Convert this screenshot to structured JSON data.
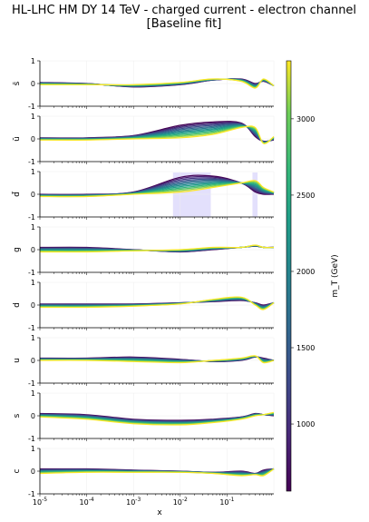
{
  "chart_data": {
    "type": "line",
    "title": "HL-LHC HM DY 14 TeV - charged current - electron channel",
    "subtitle": "[Baseline fit]",
    "xlabel": "x",
    "x_scale": "log",
    "xlim": [
      1e-05,
      1
    ],
    "x_ticks": [
      "10^-5",
      "10^-4",
      "10^-3",
      "10^-2",
      "10^-1"
    ],
    "colorbar": {
      "label": "m_T (GeV)",
      "colormap": "viridis",
      "range": [
        560,
        3380
      ],
      "ticks": [
        1000,
        1500,
        2000,
        2500,
        3000
      ]
    },
    "series_count_per_panel": 12,
    "panels": [
      {
        "name": "s̄",
        "ylim": [
          -1,
          1
        ],
        "yticks": [
          -1,
          0,
          1
        ],
        "low_mT_curve": {
          "x": [
            1e-05,
            0.0001,
            0.001,
            0.01,
            0.05,
            0.2,
            0.4,
            0.6,
            1.0
          ],
          "y": [
            0.05,
            0.0,
            -0.15,
            -0.05,
            0.15,
            0.2,
            0.0,
            0.1,
            -0.1
          ]
        },
        "high_mT_curve": {
          "x": [
            1e-05,
            0.0001,
            0.001,
            0.01,
            0.05,
            0.2,
            0.4,
            0.6,
            1.0
          ],
          "y": [
            -0.05,
            -0.05,
            -0.05,
            0.05,
            0.2,
            0.1,
            -0.2,
            0.2,
            -0.1
          ]
        }
      },
      {
        "name": "ū",
        "ylim": [
          -1,
          1
        ],
        "yticks": [
          -1,
          0,
          1
        ],
        "low_mT_curve": {
          "x": [
            1e-05,
            0.0001,
            0.001,
            0.01,
            0.05,
            0.2,
            0.4,
            0.6,
            1.0
          ],
          "y": [
            0.05,
            0.05,
            0.15,
            0.6,
            0.75,
            0.7,
            0.1,
            -0.1,
            -0.05
          ]
        },
        "high_mT_curve": {
          "x": [
            1e-05,
            0.0001,
            0.001,
            0.01,
            0.05,
            0.2,
            0.4,
            0.6,
            1.0
          ],
          "y": [
            -0.05,
            -0.05,
            0.0,
            0.05,
            0.2,
            0.5,
            0.5,
            -0.2,
            0.1
          ]
        }
      },
      {
        "name": "d̄",
        "ylim": [
          -1,
          1
        ],
        "yticks": [
          -1,
          0,
          1
        ],
        "low_mT_curve": {
          "x": [
            1e-05,
            0.0001,
            0.001,
            0.01,
            0.05,
            0.2,
            0.4,
            0.6,
            1.0
          ],
          "y": [
            0.0,
            0.0,
            0.1,
            0.75,
            0.8,
            0.5,
            0.1,
            0.0,
            0.0
          ]
        },
        "high_mT_curve": {
          "x": [
            1e-05,
            0.0001,
            0.001,
            0.01,
            0.05,
            0.2,
            0.4,
            0.6,
            1.0
          ],
          "y": [
            -0.1,
            -0.1,
            0.0,
            0.1,
            0.3,
            0.5,
            0.6,
            0.3,
            0.1
          ]
        },
        "shaded_x_ranges": [
          [
            0.007,
            0.045
          ],
          [
            0.35,
            0.45
          ]
        ]
      },
      {
        "name": "g",
        "ylim": [
          -1,
          1
        ],
        "yticks": [
          -1,
          0,
          1
        ],
        "low_mT_curve": {
          "x": [
            1e-05,
            0.0001,
            0.001,
            0.01,
            0.05,
            0.2,
            0.4,
            0.6,
            1.0
          ],
          "y": [
            0.1,
            0.1,
            0.0,
            -0.1,
            0.0,
            0.1,
            0.15,
            0.1,
            0.1
          ]
        },
        "high_mT_curve": {
          "x": [
            1e-05,
            0.0001,
            0.001,
            0.01,
            0.05,
            0.2,
            0.4,
            0.6,
            1.0
          ],
          "y": [
            -0.1,
            -0.1,
            -0.05,
            0.0,
            0.1,
            0.1,
            0.2,
            0.1,
            0.1
          ]
        }
      },
      {
        "name": "d",
        "ylim": [
          -1,
          1
        ],
        "yticks": [
          -1,
          0,
          1
        ],
        "low_mT_curve": {
          "x": [
            1e-05,
            0.0001,
            0.001,
            0.01,
            0.05,
            0.2,
            0.4,
            0.6,
            1.0
          ],
          "y": [
            0.05,
            0.05,
            0.05,
            0.1,
            0.15,
            0.2,
            0.1,
            0.0,
            0.1
          ]
        },
        "high_mT_curve": {
          "x": [
            1e-05,
            0.0001,
            0.001,
            0.01,
            0.05,
            0.2,
            0.4,
            0.6,
            1.0
          ],
          "y": [
            -0.1,
            -0.1,
            -0.05,
            0.05,
            0.25,
            0.35,
            0.0,
            -0.2,
            0.1
          ]
        }
      },
      {
        "name": "u",
        "ylim": [
          -1,
          1
        ],
        "yticks": [
          -1,
          0,
          1
        ],
        "low_mT_curve": {
          "x": [
            1e-05,
            0.0001,
            0.001,
            0.01,
            0.05,
            0.2,
            0.4,
            0.6,
            1.0
          ],
          "y": [
            0.1,
            0.1,
            0.15,
            0.05,
            -0.05,
            0.0,
            0.15,
            0.1,
            0.0
          ]
        },
        "high_mT_curve": {
          "x": [
            1e-05,
            0.0001,
            0.001,
            0.01,
            0.05,
            0.2,
            0.4,
            0.6,
            1.0
          ],
          "y": [
            0.0,
            0.0,
            -0.05,
            -0.1,
            0.0,
            0.1,
            0.2,
            -0.1,
            0.0
          ]
        }
      },
      {
        "name": "s",
        "ylim": [
          -1,
          1
        ],
        "yticks": [
          -1,
          0,
          1
        ],
        "low_mT_curve": {
          "x": [
            1e-05,
            0.0001,
            0.001,
            0.01,
            0.05,
            0.2,
            0.4,
            0.6,
            1.0
          ],
          "y": [
            0.1,
            0.05,
            -0.15,
            -0.2,
            -0.15,
            -0.05,
            0.1,
            0.05,
            0.0
          ]
        },
        "high_mT_curve": {
          "x": [
            1e-05,
            0.0001,
            0.001,
            0.01,
            0.05,
            0.2,
            0.4,
            0.6,
            1.0
          ],
          "y": [
            -0.05,
            -0.15,
            -0.35,
            -0.4,
            -0.3,
            -0.15,
            0.0,
            0.05,
            0.15
          ]
        }
      },
      {
        "name": "c",
        "ylim": [
          -1,
          1
        ],
        "yticks": [
          -1,
          0,
          1
        ],
        "low_mT_curve": {
          "x": [
            1e-05,
            0.0001,
            0.001,
            0.01,
            0.05,
            0.2,
            0.4,
            0.6,
            1.0
          ],
          "y": [
            0.1,
            0.1,
            0.05,
            0.0,
            -0.05,
            0.0,
            -0.1,
            0.05,
            0.1
          ]
        },
        "high_mT_curve": {
          "x": [
            1e-05,
            0.0001,
            0.001,
            0.01,
            0.05,
            0.2,
            0.4,
            0.6,
            1.0
          ],
          "y": [
            -0.1,
            -0.05,
            -0.05,
            -0.05,
            -0.1,
            -0.2,
            -0.15,
            -0.2,
            0.1
          ]
        }
      }
    ]
  }
}
